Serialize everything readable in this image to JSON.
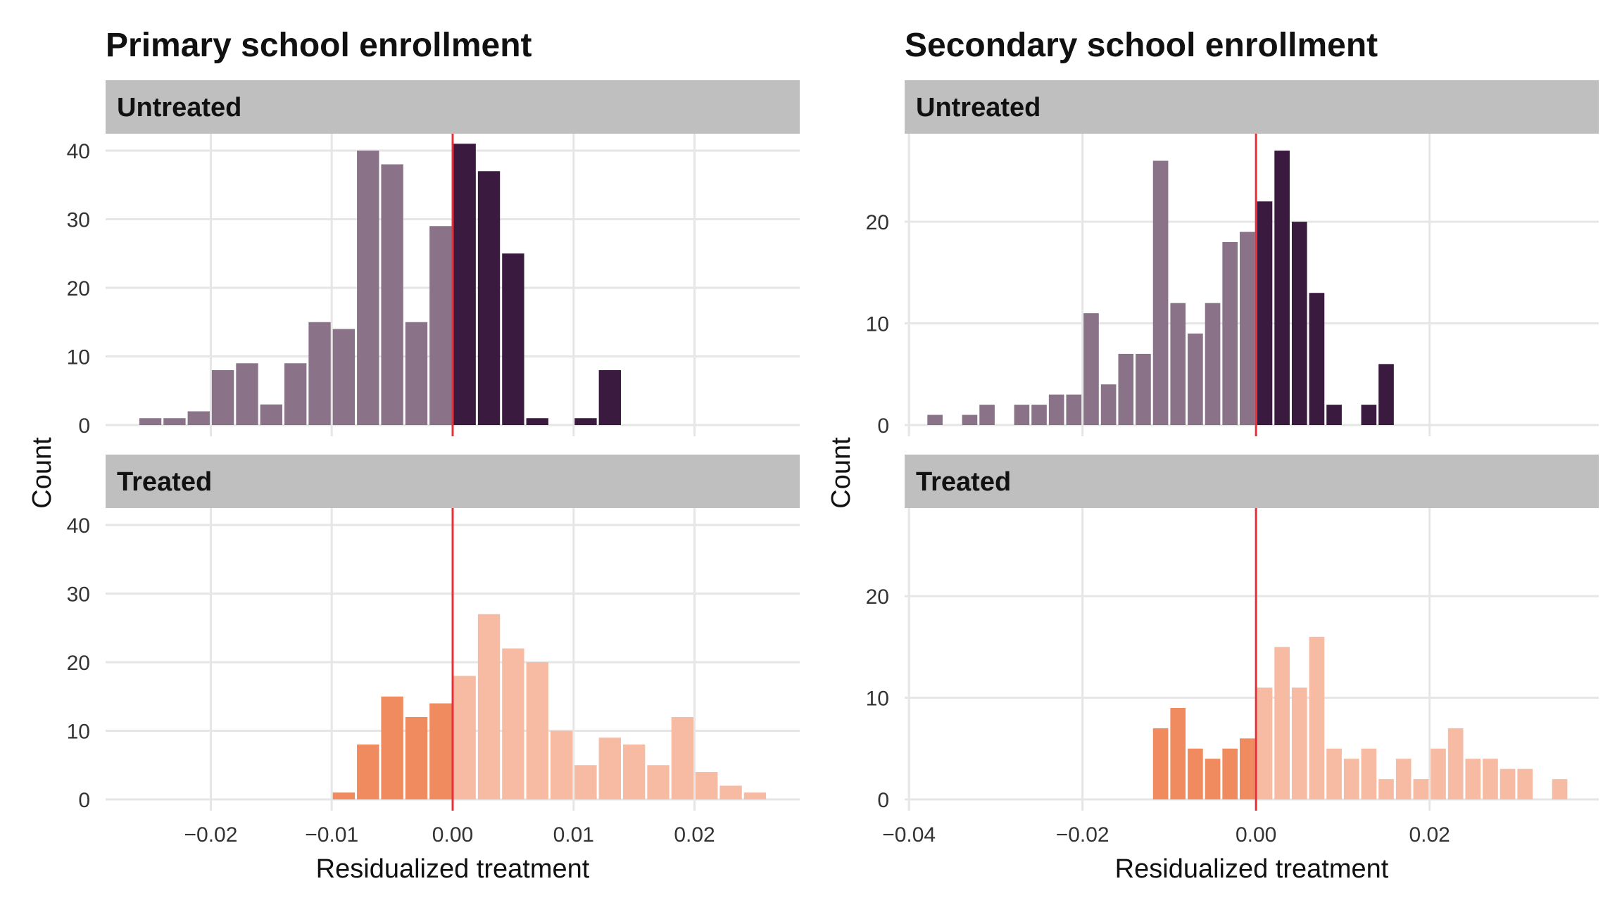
{
  "colors": {
    "untreated_dark": "#3a1a3e",
    "untreated_light": "#8a7388",
    "treated_dark": "#f08a5f",
    "treated_light": "#f6bba2",
    "zero_line": "#e8303a",
    "strip_bg": "#bfbfbf",
    "grid": "#e6e6e6"
  },
  "chart_data": [
    {
      "type": "bar",
      "title": "Primary school enrollment",
      "xlabel": "Residualized treatment",
      "ylabel": "Count",
      "xlim": [
        -0.0287,
        0.0287
      ],
      "ylim": [
        0,
        40
      ],
      "x_ticks": [
        -0.02,
        -0.01,
        0.0,
        0.01,
        0.02
      ],
      "x_tick_labels": [
        "−0.02",
        "−0.01",
        "0.00",
        "0.01",
        "0.02"
      ],
      "y_ticks": [
        0,
        10,
        20,
        30,
        40
      ],
      "y_tick_labels": [
        "0",
        "10",
        "20",
        "30",
        "40"
      ],
      "bin_width": 0.002,
      "zero_line": 0,
      "grid": true,
      "panels": [
        {
          "label": "Untreated",
          "series": [
            {
              "bin_center": -0.025,
              "count": 1
            },
            {
              "bin_center": -0.023,
              "count": 1
            },
            {
              "bin_center": -0.021,
              "count": 2
            },
            {
              "bin_center": -0.019,
              "count": 8
            },
            {
              "bin_center": -0.017,
              "count": 9
            },
            {
              "bin_center": -0.015,
              "count": 3
            },
            {
              "bin_center": -0.013,
              "count": 9
            },
            {
              "bin_center": -0.011,
              "count": 15
            },
            {
              "bin_center": -0.009,
              "count": 14
            },
            {
              "bin_center": -0.007,
              "count": 40
            },
            {
              "bin_center": -0.005,
              "count": 38
            },
            {
              "bin_center": -0.003,
              "count": 15
            },
            {
              "bin_center": -0.001,
              "count": 29
            },
            {
              "bin_center": 0.001,
              "count": 41
            },
            {
              "bin_center": 0.003,
              "count": 37
            },
            {
              "bin_center": 0.005,
              "count": 25
            },
            {
              "bin_center": 0.007,
              "count": 1
            },
            {
              "bin_center": 0.009,
              "count": 0
            },
            {
              "bin_center": 0.011,
              "count": 1
            },
            {
              "bin_center": 0.013,
              "count": 8
            },
            {
              "bin_center": 0.015,
              "count": 0
            },
            {
              "bin_center": 0.017,
              "count": 0
            },
            {
              "bin_center": 0.019,
              "count": 0
            },
            {
              "bin_center": 0.021,
              "count": 0
            },
            {
              "bin_center": 0.023,
              "count": 0
            },
            {
              "bin_center": 0.025,
              "count": 0
            }
          ]
        },
        {
          "label": "Treated",
          "series": [
            {
              "bin_center": -0.025,
              "count": 0
            },
            {
              "bin_center": -0.023,
              "count": 0
            },
            {
              "bin_center": -0.021,
              "count": 0
            },
            {
              "bin_center": -0.019,
              "count": 0
            },
            {
              "bin_center": -0.017,
              "count": 0
            },
            {
              "bin_center": -0.015,
              "count": 0
            },
            {
              "bin_center": -0.013,
              "count": 0
            },
            {
              "bin_center": -0.011,
              "count": 0
            },
            {
              "bin_center": -0.009,
              "count": 1
            },
            {
              "bin_center": -0.007,
              "count": 8
            },
            {
              "bin_center": -0.005,
              "count": 15
            },
            {
              "bin_center": -0.003,
              "count": 12
            },
            {
              "bin_center": -0.001,
              "count": 14
            },
            {
              "bin_center": 0.001,
              "count": 18
            },
            {
              "bin_center": 0.003,
              "count": 27
            },
            {
              "bin_center": 0.005,
              "count": 22
            },
            {
              "bin_center": 0.007,
              "count": 20
            },
            {
              "bin_center": 0.009,
              "count": 10
            },
            {
              "bin_center": 0.011,
              "count": 5
            },
            {
              "bin_center": 0.013,
              "count": 9
            },
            {
              "bin_center": 0.015,
              "count": 8
            },
            {
              "bin_center": 0.017,
              "count": 5
            },
            {
              "bin_center": 0.019,
              "count": 12
            },
            {
              "bin_center": 0.021,
              "count": 4
            },
            {
              "bin_center": 0.023,
              "count": 2
            },
            {
              "bin_center": 0.025,
              "count": 1
            }
          ]
        }
      ]
    },
    {
      "type": "bar",
      "title": "Secondary school enrollment",
      "xlabel": "Residualized treatment",
      "ylabel": "Count",
      "xlim": [
        -0.0405,
        0.0395
      ],
      "ylim": [
        0,
        27
      ],
      "x_ticks": [
        -0.04,
        -0.02,
        0.0,
        0.02
      ],
      "x_tick_labels": [
        "−0.04",
        "−0.02",
        "0.00",
        "0.02"
      ],
      "y_ticks": [
        0,
        10,
        20
      ],
      "y_tick_labels": [
        "0",
        "10",
        "20"
      ],
      "bin_width": 0.002,
      "zero_line": 0,
      "grid": true,
      "panels": [
        {
          "label": "Untreated",
          "series": [
            {
              "bin_center": -0.039,
              "count": 0
            },
            {
              "bin_center": -0.037,
              "count": 1
            },
            {
              "bin_center": -0.035,
              "count": 0
            },
            {
              "bin_center": -0.033,
              "count": 1
            },
            {
              "bin_center": -0.031,
              "count": 2
            },
            {
              "bin_center": -0.029,
              "count": 0
            },
            {
              "bin_center": -0.027,
              "count": 2
            },
            {
              "bin_center": -0.025,
              "count": 2
            },
            {
              "bin_center": -0.023,
              "count": 3
            },
            {
              "bin_center": -0.021,
              "count": 3
            },
            {
              "bin_center": -0.019,
              "count": 11
            },
            {
              "bin_center": -0.017,
              "count": 4
            },
            {
              "bin_center": -0.015,
              "count": 7
            },
            {
              "bin_center": -0.013,
              "count": 7
            },
            {
              "bin_center": -0.011,
              "count": 26
            },
            {
              "bin_center": -0.009,
              "count": 12
            },
            {
              "bin_center": -0.007,
              "count": 9
            },
            {
              "bin_center": -0.005,
              "count": 12
            },
            {
              "bin_center": -0.003,
              "count": 18
            },
            {
              "bin_center": -0.001,
              "count": 19
            },
            {
              "bin_center": 0.001,
              "count": 22
            },
            {
              "bin_center": 0.003,
              "count": 27
            },
            {
              "bin_center": 0.005,
              "count": 20
            },
            {
              "bin_center": 0.007,
              "count": 13
            },
            {
              "bin_center": 0.009,
              "count": 2
            },
            {
              "bin_center": 0.011,
              "count": 0
            },
            {
              "bin_center": 0.013,
              "count": 2
            },
            {
              "bin_center": 0.015,
              "count": 6
            },
            {
              "bin_center": 0.017,
              "count": 0
            },
            {
              "bin_center": 0.019,
              "count": 0
            },
            {
              "bin_center": 0.021,
              "count": 0
            },
            {
              "bin_center": 0.023,
              "count": 0
            },
            {
              "bin_center": 0.025,
              "count": 0
            },
            {
              "bin_center": 0.027,
              "count": 0
            },
            {
              "bin_center": 0.029,
              "count": 0
            },
            {
              "bin_center": 0.031,
              "count": 0
            },
            {
              "bin_center": 0.033,
              "count": 0
            },
            {
              "bin_center": 0.035,
              "count": 0
            }
          ]
        },
        {
          "label": "Treated",
          "series": [
            {
              "bin_center": -0.039,
              "count": 0
            },
            {
              "bin_center": -0.037,
              "count": 0
            },
            {
              "bin_center": -0.035,
              "count": 0
            },
            {
              "bin_center": -0.033,
              "count": 0
            },
            {
              "bin_center": -0.031,
              "count": 0
            },
            {
              "bin_center": -0.029,
              "count": 0
            },
            {
              "bin_center": -0.027,
              "count": 0
            },
            {
              "bin_center": -0.025,
              "count": 0
            },
            {
              "bin_center": -0.023,
              "count": 0
            },
            {
              "bin_center": -0.021,
              "count": 0
            },
            {
              "bin_center": -0.019,
              "count": 0
            },
            {
              "bin_center": -0.017,
              "count": 0
            },
            {
              "bin_center": -0.015,
              "count": 0
            },
            {
              "bin_center": -0.013,
              "count": 0
            },
            {
              "bin_center": -0.011,
              "count": 7
            },
            {
              "bin_center": -0.009,
              "count": 9
            },
            {
              "bin_center": -0.007,
              "count": 5
            },
            {
              "bin_center": -0.005,
              "count": 4
            },
            {
              "bin_center": -0.003,
              "count": 5
            },
            {
              "bin_center": -0.001,
              "count": 6
            },
            {
              "bin_center": 0.001,
              "count": 11
            },
            {
              "bin_center": 0.003,
              "count": 15
            },
            {
              "bin_center": 0.005,
              "count": 11
            },
            {
              "bin_center": 0.007,
              "count": 16
            },
            {
              "bin_center": 0.009,
              "count": 5
            },
            {
              "bin_center": 0.011,
              "count": 4
            },
            {
              "bin_center": 0.013,
              "count": 5
            },
            {
              "bin_center": 0.015,
              "count": 2
            },
            {
              "bin_center": 0.017,
              "count": 4
            },
            {
              "bin_center": 0.019,
              "count": 2
            },
            {
              "bin_center": 0.021,
              "count": 5
            },
            {
              "bin_center": 0.023,
              "count": 7
            },
            {
              "bin_center": 0.025,
              "count": 4
            },
            {
              "bin_center": 0.027,
              "count": 4
            },
            {
              "bin_center": 0.029,
              "count": 3
            },
            {
              "bin_center": 0.031,
              "count": 3
            },
            {
              "bin_center": 0.033,
              "count": 0
            },
            {
              "bin_center": 0.035,
              "count": 2
            }
          ]
        }
      ]
    }
  ]
}
